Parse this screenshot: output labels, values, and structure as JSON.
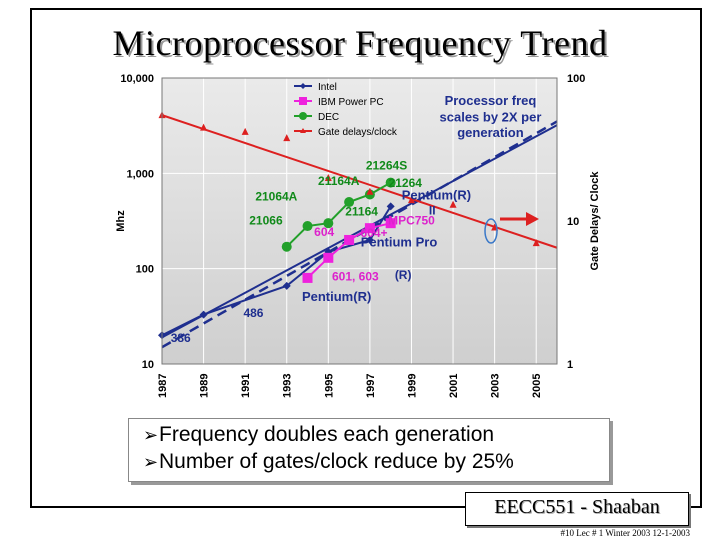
{
  "slide": {
    "title": "Microprocessor  Frequency Trend",
    "bullets": [
      {
        "marker": "➢",
        "text": "Frequency doubles each generation"
      },
      {
        "marker": "➢",
        "text": "Number of gates/clock reduce by 25%"
      }
    ],
    "footer_title": "EECC551 - Shaaban",
    "footer_sub": "#10   Lec # 1  Winter 2003   12-1-2003"
  },
  "colors": {
    "intel": "#1f2f8f",
    "ibm": "#ee22dd",
    "dec": "#22a02a",
    "gate": "#dd2020",
    "label_blue": "#1f2f8f",
    "label_green": "#118a1a",
    "label_magenta": "#dd22cc",
    "label_red": "#dd2020"
  },
  "chart_data": {
    "type": "line",
    "xlabel": "",
    "ylabel": "Mhz",
    "y2label": "Gate Delays/ Clock",
    "x_ticks": [
      "1987",
      "1989",
      "1991",
      "1993",
      "1995",
      "1997",
      "1999",
      "2001",
      "2003",
      "2005"
    ],
    "xlim": [
      1987,
      2006
    ],
    "ylim": [
      10,
      10000
    ],
    "y_scale": "log",
    "y_ticks": [
      "10",
      "100",
      "1,000",
      "10,000"
    ],
    "y2lim": [
      1,
      100
    ],
    "y2_scale": "log",
    "y2_ticks": [
      "1",
      "10",
      "100"
    ],
    "grid": true,
    "legend_position": "top-left",
    "legend": [
      "Intel",
      "IBM Power PC",
      "DEC",
      "Gate delays/clock"
    ],
    "series": [
      {
        "name": "Intel",
        "axis": "left",
        "marker": "diamond",
        "x": [
          1987,
          1989,
          1993,
          1995,
          1997,
          1998
        ],
        "y": [
          20,
          33,
          66,
          150,
          200,
          450
        ]
      },
      {
        "name": "IBM Power PC",
        "axis": "left",
        "marker": "square",
        "x": [
          1994,
          1995,
          1996,
          1997,
          1998
        ],
        "y": [
          80,
          130,
          200,
          266,
          300
        ]
      },
      {
        "name": "DEC",
        "axis": "left",
        "marker": "circle",
        "x": [
          1993,
          1994,
          1995,
          1996,
          1997,
          1998
        ],
        "y": [
          170,
          280,
          300,
          500,
          600,
          800
        ]
      },
      {
        "name": "Gate delays/clock",
        "axis": "right",
        "marker": "triangle",
        "x": [
          1987,
          1989,
          1991,
          1993,
          1995,
          1997,
          1999,
          2001,
          2003,
          2005
        ],
        "y": [
          55,
          45,
          42,
          38,
          20,
          16,
          14,
          13,
          9,
          7
        ]
      }
    ],
    "trend_lines": [
      {
        "name": "Intel trend",
        "x": [
          1987,
          2006
        ],
        "y": [
          19,
          3200
        ]
      },
      {
        "name": "Intel dashed trend",
        "x": [
          1987,
          2006
        ],
        "y": [
          15,
          3500
        ]
      },
      {
        "name": "Gate delay trend",
        "x": [
          1987,
          2006
        ],
        "y": [
          55,
          6.5
        ]
      }
    ],
    "annotations": [
      {
        "text": "Processor freq",
        "x": 2002.8,
        "y": 5200,
        "color": "label_blue",
        "bold": true
      },
      {
        "text": "scales by 2X per",
        "x": 2002.8,
        "y": 3500,
        "color": "label_blue",
        "bold": true
      },
      {
        "text": "generation",
        "x": 2002.8,
        "y": 2400,
        "color": "label_blue",
        "bold": true
      },
      {
        "text": "21264S",
        "x": 1997.8,
        "y": 1100,
        "color": "label_green",
        "bold": true
      },
      {
        "text": "21164A",
        "x": 1995.5,
        "y": 750,
        "color": "label_green",
        "bold": true
      },
      {
        "text": "21264",
        "x": 1998.7,
        "y": 720,
        "color": "label_green",
        "bold": true
      },
      {
        "text": "21064A",
        "x": 1992.5,
        "y": 520,
        "color": "label_green",
        "bold": true
      },
      {
        "text": "Pentium(R)",
        "x": 2000.2,
        "y": 530,
        "color": "label_blue",
        "bold": true
      },
      {
        "text": "21164",
        "x": 1996.6,
        "y": 360,
        "color": "label_green",
        "bold": true
      },
      {
        "text": "II",
        "x": 2000.0,
        "y": 370,
        "color": "label_blue",
        "bold": true
      },
      {
        "text": "21066",
        "x": 1992.0,
        "y": 290,
        "color": "label_green",
        "bold": true
      },
      {
        "text": "MPC750",
        "x": 1999.0,
        "y": 290,
        "color": "label_magenta",
        "bold": true
      },
      {
        "text": "604",
        "x": 1994.8,
        "y": 220,
        "color": "label_magenta",
        "bold": true
      },
      {
        "text": "604+",
        "x": 1997.2,
        "y": 215,
        "color": "label_magenta",
        "bold": true
      },
      {
        "text": "Pentium Pro",
        "x": 1998.4,
        "y": 170,
        "color": "label_blue",
        "bold": true
      },
      {
        "text": "601, 603",
        "x": 1996.3,
        "y": 75,
        "color": "label_magenta",
        "bold": true
      },
      {
        "text": "(R)",
        "x": 1998.6,
        "y": 78,
        "color": "label_blue",
        "bold": true
      },
      {
        "text": "Pentium(R)",
        "x": 1995.4,
        "y": 46,
        "color": "label_blue",
        "bold": true
      },
      {
        "text": "486",
        "x": 1991.4,
        "y": 31,
        "color": "label_blue",
        "bold": true
      },
      {
        "text": "386",
        "x": 1987.9,
        "y": 17,
        "color": "label_blue",
        "bold": true
      }
    ]
  }
}
